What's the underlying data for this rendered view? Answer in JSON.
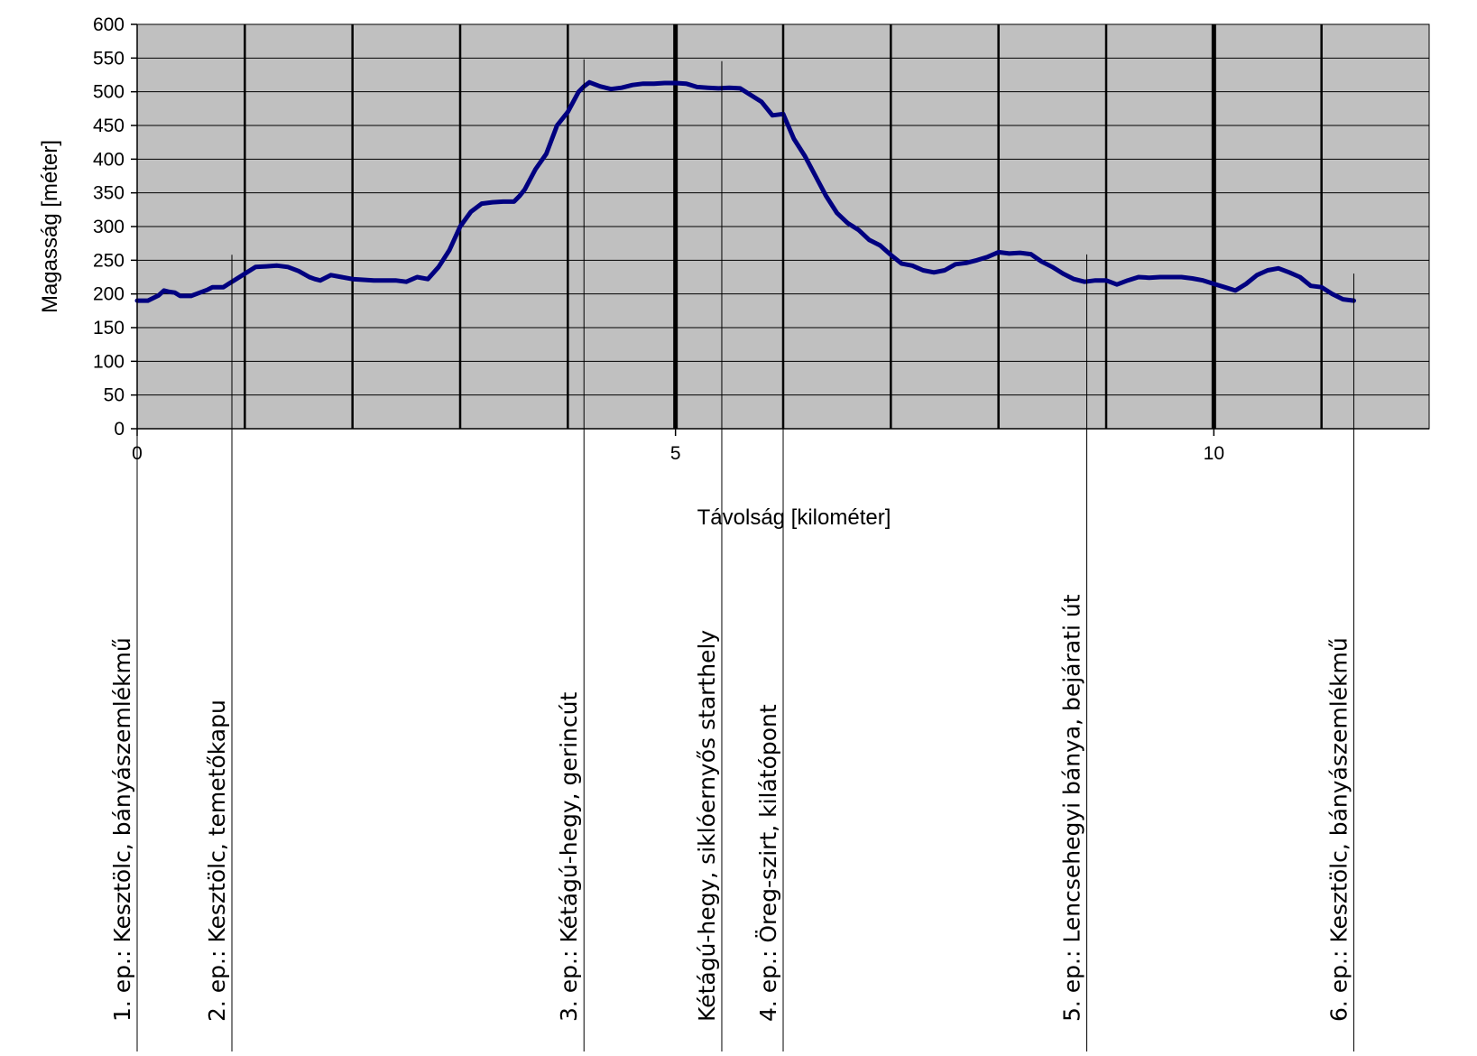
{
  "chart_data": {
    "type": "line",
    "title": "",
    "xlabel": "Távolság [kilométer]",
    "ylabel": "Magasság [méter]",
    "xlim": [
      0,
      12
    ],
    "ylim": [
      0,
      600
    ],
    "x_ticks": [
      "0",
      "5",
      "10"
    ],
    "y_ticks": [
      "0",
      "50",
      "100",
      "150",
      "200",
      "250",
      "300",
      "350",
      "400",
      "450",
      "500",
      "550",
      "600"
    ],
    "grid": "horizontal every 50 m, vertical every 1 km",
    "plot_background": "#c0c0c0",
    "line_color": "#000080",
    "series": [
      {
        "x": [
          0,
          0.1,
          0.2,
          0.25,
          0.3,
          0.35,
          0.4,
          0.5,
          0.55,
          0.65,
          0.7,
          0.8,
          0.9,
          1.0,
          1.1,
          1.2,
          1.3,
          1.4,
          1.5,
          1.6,
          1.65,
          1.7,
          1.8,
          1.9,
          2.0,
          2.2,
          2.3,
          2.4,
          2.5,
          2.6,
          2.7,
          2.8,
          2.9,
          3.0,
          3.1,
          3.2,
          3.3,
          3.4,
          3.5,
          3.55,
          3.6,
          3.7,
          3.8,
          3.9,
          4.0,
          4.1,
          4.15,
          4.2,
          4.3,
          4.4,
          4.5,
          4.6,
          4.7,
          4.8,
          4.9,
          5.0,
          5.1,
          5.2,
          5.3,
          5.4,
          5.5,
          5.6,
          5.7,
          5.8,
          5.9,
          6.0,
          6.1,
          6.2,
          6.3,
          6.4,
          6.5,
          6.6,
          6.7,
          6.8,
          6.9,
          7.0,
          7.1,
          7.2,
          7.3,
          7.4,
          7.5,
          7.6,
          7.7,
          7.8,
          7.9,
          8.0,
          8.1,
          8.2,
          8.3,
          8.4,
          8.5,
          8.6,
          8.7,
          8.8,
          8.9,
          9.0,
          9.1,
          9.2,
          9.3,
          9.4,
          9.5,
          9.6,
          9.7,
          9.8,
          9.9,
          10.0,
          10.1,
          10.2,
          10.3,
          10.4,
          10.5,
          10.6,
          10.7,
          10.8,
          10.9,
          11.0,
          11.1,
          11.2,
          11.3
        ],
        "y": [
          190,
          190,
          198,
          205,
          203,
          202,
          197,
          197,
          200,
          206,
          210,
          210,
          220,
          230,
          240,
          241,
          242,
          240,
          234,
          225,
          222,
          220,
          228,
          225,
          222,
          220,
          220,
          220,
          218,
          225,
          222,
          240,
          265,
          300,
          322,
          334,
          336,
          337,
          337,
          345,
          355,
          385,
          408,
          450,
          470,
          500,
          508,
          514,
          508,
          504,
          506,
          510,
          512,
          512,
          513,
          513,
          512,
          507,
          506,
          505,
          506,
          505,
          495,
          485,
          465,
          467,
          430,
          405,
          375,
          345,
          320,
          305,
          295,
          280,
          272,
          258,
          245,
          242,
          235,
          232,
          235,
          244,
          246,
          250,
          255,
          262,
          260,
          261,
          259,
          248,
          240,
          230,
          222,
          218,
          220,
          220,
          214,
          220,
          225,
          224,
          225,
          225,
          225,
          223,
          220,
          215,
          210,
          205,
          215,
          228,
          235,
          238,
          232,
          225,
          212,
          210,
          200,
          192,
          190
        ]
      }
    ],
    "waypoints": [
      {
        "x": 0,
        "label": "1. ep.: Kesztölc, bányászemlékmű"
      },
      {
        "x": 0.88,
        "label": "2. ep.: Kesztölc, temetőkapu"
      },
      {
        "x": 4.15,
        "label": "3. ep.: Kétágú-hegy, gerincút"
      },
      {
        "x": 5.43,
        "label": "Kétágú-hegy, siklóernyős starthely"
      },
      {
        "x": 6.0,
        "label": "4. ep.: Öreg-szirt, kilátópont"
      },
      {
        "x": 8.82,
        "label": "5. ep.: Lencsehegyi bánya, bejárati út"
      },
      {
        "x": 11.3,
        "label": "6. ep.: Kesztölc, bányászemlékmű"
      }
    ]
  }
}
